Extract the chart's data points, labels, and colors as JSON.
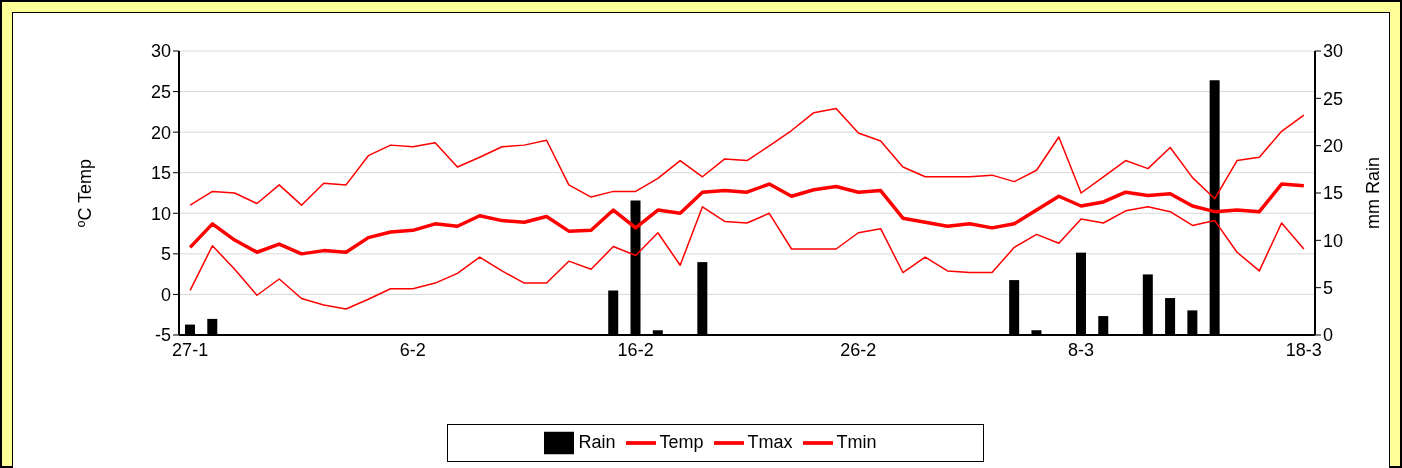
{
  "chart_data": {
    "type": "line",
    "categories": [
      "27-1",
      null,
      null,
      null,
      null,
      null,
      null,
      null,
      null,
      null,
      "6-2",
      null,
      null,
      null,
      null,
      null,
      null,
      null,
      null,
      null,
      "16-2",
      null,
      null,
      null,
      null,
      null,
      null,
      null,
      null,
      null,
      "26-2",
      null,
      null,
      null,
      null,
      null,
      null,
      null,
      null,
      null,
      "8-3",
      null,
      null,
      null,
      null,
      null,
      null,
      null,
      null,
      null,
      "18-3"
    ],
    "series": [
      {
        "name": "Rain",
        "type": "bar",
        "axis": "y2",
        "color": "#000000",
        "values": [
          1.1,
          1.7,
          0,
          0,
          0,
          0,
          0,
          0,
          0,
          0,
          0,
          0,
          0,
          0,
          0,
          0,
          0,
          0,
          0,
          4.7,
          14.2,
          0.5,
          0,
          7.7,
          0,
          0,
          0,
          0,
          0,
          0,
          0,
          0,
          0,
          0,
          0,
          0,
          0,
          5.8,
          0.5,
          0,
          8.7,
          2.0,
          0,
          6.4,
          3.9,
          2.6,
          26.9,
          0,
          0,
          0,
          0
        ]
      },
      {
        "name": "Temp",
        "color": "#ff0000",
        "values": [
          5.8,
          8.7,
          6.7,
          5.2,
          6.2,
          5.0,
          5.4,
          5.2,
          7.0,
          7.7,
          7.9,
          8.7,
          8.4,
          9.7,
          9.1,
          8.9,
          9.6,
          7.8,
          7.9,
          10.4,
          8.2,
          10.4,
          10.0,
          12.6,
          12.8,
          12.6,
          13.6,
          12.1,
          12.9,
          13.3,
          12.6,
          12.8,
          9.4,
          8.9,
          8.4,
          8.7,
          8.2,
          8.7,
          10.4,
          12.1,
          10.9,
          11.4,
          12.6,
          12.2,
          12.4,
          10.9,
          10.2,
          10.4,
          10.2,
          13.6,
          13.4
        ]
      },
      {
        "name": "Tmax",
        "color": "#ff0000",
        "values": [
          11.0,
          12.7,
          12.5,
          11.2,
          13.5,
          11.0,
          13.7,
          13.5,
          17.1,
          18.4,
          18.2,
          18.7,
          15.7,
          16.9,
          18.2,
          18.4,
          19.0,
          13.5,
          12.0,
          12.7,
          12.7,
          14.3,
          16.5,
          14.5,
          16.7,
          16.5,
          18.3,
          20.2,
          22.4,
          22.9,
          19.9,
          18.9,
          15.7,
          14.5,
          14.5,
          14.5,
          14.7,
          13.9,
          15.3,
          19.4,
          12.5,
          14.5,
          16.5,
          15.5,
          18.1,
          14.4,
          11.8,
          16.5,
          16.9,
          20.1,
          22.1
        ]
      },
      {
        "name": "Tmin",
        "color": "#ff0000",
        "values": [
          0.5,
          6.0,
          3.1,
          -0.1,
          1.9,
          -0.5,
          -1.3,
          -1.8,
          -0.6,
          0.7,
          0.7,
          1.4,
          2.6,
          4.6,
          2.9,
          1.4,
          1.4,
          4.1,
          3.1,
          5.9,
          4.8,
          7.6,
          3.6,
          10.8,
          9.0,
          8.8,
          10.0,
          5.6,
          5.6,
          5.6,
          7.6,
          8.1,
          2.7,
          4.6,
          2.9,
          2.7,
          2.7,
          5.8,
          7.4,
          6.3,
          9.3,
          8.8,
          10.3,
          10.8,
          10.2,
          8.5,
          9.1,
          5.2,
          2.9,
          8.8,
          5.6
        ]
      }
    ],
    "ylabel": "ºC Temp",
    "y2label": "mm Rain",
    "ylim": [
      -5,
      30
    ],
    "yticks": [
      -5,
      0,
      5,
      10,
      15,
      20,
      25,
      30
    ],
    "y2lim": [
      0,
      30
    ],
    "y2ticks": [
      0,
      5,
      10,
      15,
      20,
      25,
      30
    ],
    "grid": "y",
    "legend": "bottom"
  }
}
